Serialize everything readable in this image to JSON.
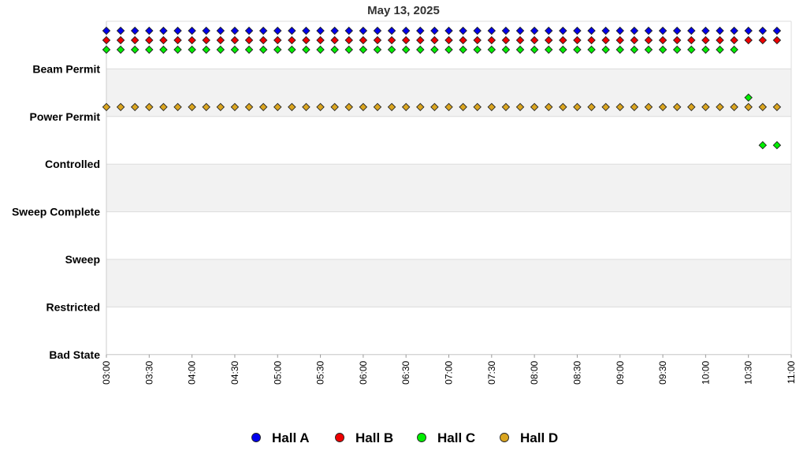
{
  "chart_data": {
    "type": "scatter",
    "title": "May 13, 2025",
    "xlabel": "",
    "ylabel": "",
    "x_ticks": [
      "03:00",
      "03:30",
      "04:00",
      "04:30",
      "05:00",
      "05:30",
      "06:00",
      "06:30",
      "07:00",
      "07:30",
      "08:00",
      "08:30",
      "09:00",
      "09:30",
      "10:00",
      "10:30",
      "11:00"
    ],
    "xlim": [
      "03:00",
      "11:00"
    ],
    "y_categories": [
      "Bad State",
      "Restricted",
      "Sweep",
      "Sweep Complete",
      "Controlled",
      "Power Permit",
      "Beam Permit"
    ],
    "sample_interval_minutes": 10,
    "grid": true,
    "legend_position": "bottom",
    "series": [
      {
        "name": "Hall A",
        "color": "#0000ee",
        "segments": [
          {
            "from": "03:00",
            "to": "10:50",
            "state": "Beam Permit",
            "level": 1.0
          }
        ]
      },
      {
        "name": "Hall B",
        "color": "#ee0000",
        "segments": [
          {
            "from": "03:00",
            "to": "10:50",
            "state": "Beam Permit",
            "level": 1.0
          }
        ]
      },
      {
        "name": "Hall C",
        "color": "#00ee00",
        "segments": [
          {
            "from": "03:00",
            "to": "10:20",
            "state": "Beam Permit",
            "level": 1.0
          },
          {
            "from": "10:30",
            "to": "10:30",
            "state": "Power Permit",
            "level": 0.2
          },
          {
            "from": "10:40",
            "to": "10:50",
            "state": "Controlled",
            "level": 0.6
          }
        ]
      },
      {
        "name": "Hall D",
        "color": "#daa520",
        "segments": [
          {
            "from": "03:00",
            "to": "10:50",
            "state": "Power Permit",
            "level": 0.0
          }
        ]
      }
    ]
  }
}
